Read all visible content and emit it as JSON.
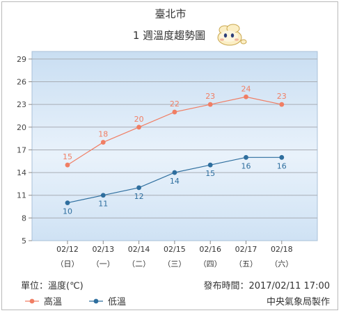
{
  "chart_data": {
    "type": "line",
    "title": "臺北市",
    "subtitle": "1 週溫度趨勢圖",
    "categories": [
      "02/12",
      "02/13",
      "02/14",
      "02/15",
      "02/16",
      "02/17",
      "02/18"
    ],
    "weekdays": [
      "（日）",
      "（一）",
      "（二）",
      "（三）",
      "（四）",
      "（五）",
      "（六）"
    ],
    "yticks": [
      5,
      8,
      11,
      14,
      17,
      20,
      23,
      26,
      29
    ],
    "ylim": [
      5,
      30
    ],
    "grid": true,
    "series": [
      {
        "name": "高溫",
        "color": "#f07e64",
        "values": [
          15,
          18,
          20,
          22,
          23,
          24,
          23
        ]
      },
      {
        "name": "低溫",
        "color": "#2e6e9e",
        "values": [
          10,
          11,
          12,
          14,
          15,
          16,
          16
        ]
      }
    ],
    "legend_position": "bottom-left"
  },
  "footer": {
    "unit": "單位：溫度(℃)",
    "published": "發布時間：2017/02/11 17:00",
    "source": "中央氣象局製作"
  },
  "mascot_icon": "cloud-mascot-icon"
}
